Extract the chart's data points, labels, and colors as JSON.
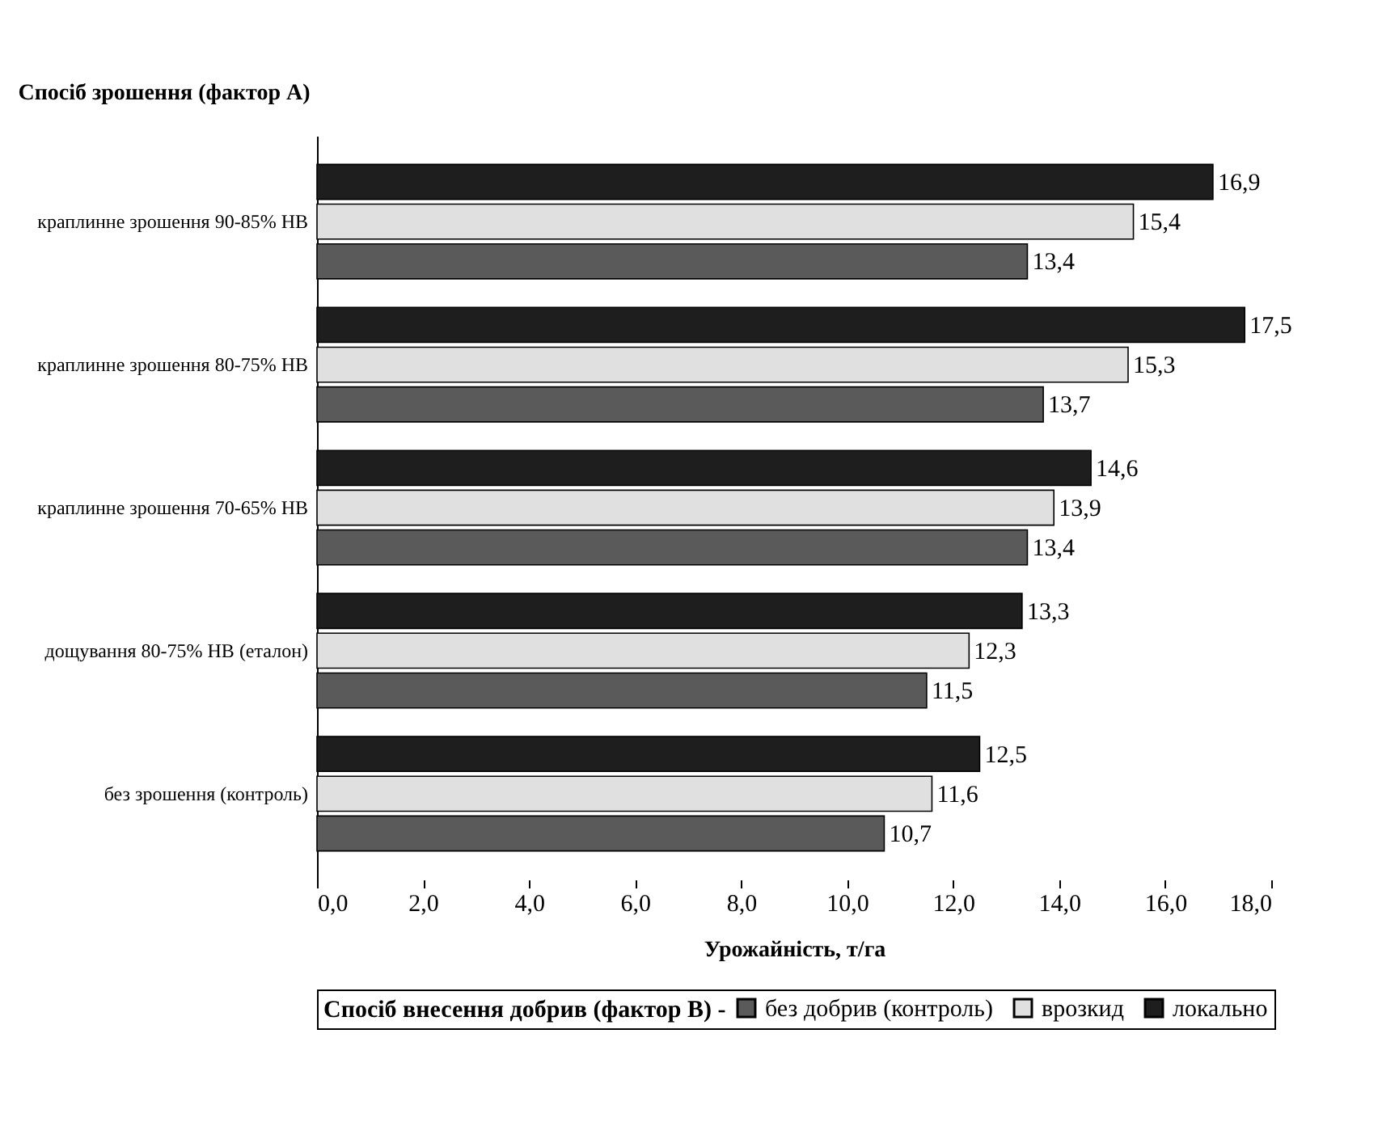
{
  "chart_data": {
    "type": "bar",
    "orientation": "horizontal",
    "ylabel": "Спосіб зрошення (фактор А)",
    "xlabel": "Урожайність, т/га",
    "legend_title": "Спосіб внесення добрив (фактор В) -",
    "categories": [
      "краплинне зрошення 90-85% НВ",
      "краплинне зрошення 80-75% НВ",
      "краплинне зрошення 70-65% НВ",
      "дощування 80-75% НВ (еталон)",
      "без зрошення (контроль)"
    ],
    "series": [
      {
        "name": "без добрив (контроль)",
        "color": "#5a5a5a",
        "values": [
          13.4,
          13.7,
          13.4,
          11.5,
          10.7
        ],
        "value_labels": [
          "13,4",
          "13,7",
          "13,4",
          "11,5",
          "10,7"
        ]
      },
      {
        "name": "врозкид",
        "color": "#e0e0e0",
        "values": [
          15.4,
          15.3,
          13.9,
          12.3,
          11.6
        ],
        "value_labels": [
          "15,4",
          "15,3",
          "13,9",
          "12,3",
          "11,6"
        ]
      },
      {
        "name": "локально",
        "color": "#1e1e1e",
        "values": [
          16.9,
          17.5,
          14.6,
          13.3,
          12.5
        ],
        "value_labels": [
          "16,9",
          "17,5",
          "14,6",
          "13,3",
          "12,5"
        ]
      }
    ],
    "xlim": [
      0,
      18
    ],
    "xticks": [
      {
        "value": 0,
        "label": "0,0"
      },
      {
        "value": 2,
        "label": "2,0"
      },
      {
        "value": 4,
        "label": "4,0"
      },
      {
        "value": 6,
        "label": "6,0"
      },
      {
        "value": 8,
        "label": "8,0"
      },
      {
        "value": 10,
        "label": "10,0"
      },
      {
        "value": 12,
        "label": "12,0"
      },
      {
        "value": 14,
        "label": "14,0"
      },
      {
        "value": 16,
        "label": "16,0"
      },
      {
        "value": 18,
        "label": "18,0"
      }
    ],
    "grid": false,
    "legend": "bottom"
  }
}
